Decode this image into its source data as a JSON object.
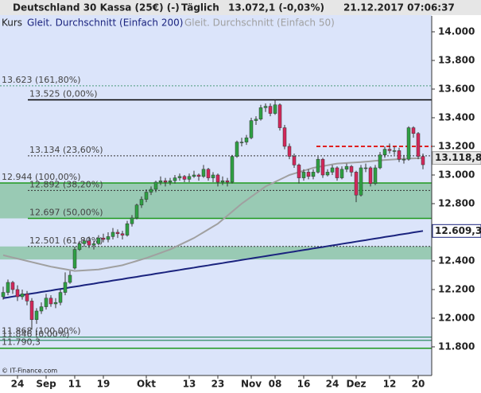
{
  "header": {
    "title": "Deutschland 30 Kassa (25€) (-)",
    "interval": "Täglich",
    "quote": "13.072,1 (-0,03%)",
    "timestamp": "21.12.2017 07:06:37"
  },
  "footer": "© IT-Finance.com",
  "chart_data": {
    "type": "candlestick",
    "legend_label": "Kurs",
    "categories": [
      null,
      null,
      null,
      "24",
      null,
      null,
      null,
      null,
      null,
      "Sep",
      null,
      null,
      null,
      null,
      null,
      "11",
      null,
      null,
      null,
      null,
      null,
      "19",
      null,
      null,
      null,
      null,
      null,
      null,
      null,
      null,
      "Okt",
      null,
      null,
      null,
      null,
      null,
      null,
      null,
      null,
      "13",
      null,
      null,
      null,
      null,
      null,
      "23",
      null,
      null,
      null,
      null,
      null,
      null,
      "Nov",
      null,
      null,
      null,
      null,
      "08",
      null,
      null,
      null,
      null,
      null,
      "16",
      null,
      null,
      null,
      null,
      null,
      "24",
      null,
      null,
      null,
      null,
      "Dez",
      null,
      null,
      null,
      null,
      null,
      null,
      "12",
      null,
      null,
      null,
      null,
      null,
      "20",
      null
    ],
    "ohlc": [
      [
        12150,
        12220,
        12130,
        12180
      ],
      [
        12180,
        12270,
        12160,
        12250
      ],
      [
        12250,
        12260,
        12170,
        12200
      ],
      [
        12200,
        12230,
        12120,
        12150
      ],
      [
        12150,
        12200,
        12130,
        12170
      ],
      [
        12170,
        12190,
        12090,
        12120
      ],
      [
        12120,
        12140,
        11920,
        11990
      ],
      [
        11990,
        12070,
        11960,
        12050
      ],
      [
        12050,
        12110,
        12030,
        12080
      ],
      [
        12080,
        12170,
        12060,
        12140
      ],
      [
        12140,
        12160,
        12080,
        12100
      ],
      [
        12100,
        12140,
        12070,
        12110
      ],
      [
        12110,
        12200,
        12090,
        12180
      ],
      [
        12180,
        12320,
        12160,
        12250
      ],
      [
        12250,
        12330,
        12240,
        12300
      ],
      [
        12350,
        12500,
        12340,
        12480
      ],
      [
        12480,
        12540,
        12470,
        12520
      ],
      [
        12520,
        12560,
        12500,
        12540
      ],
      [
        12540,
        12570,
        12490,
        12510
      ],
      [
        12510,
        12540,
        12480,
        12520
      ],
      [
        12520,
        12580,
        12510,
        12560
      ],
      [
        12560,
        12590,
        12530,
        12550
      ],
      [
        12550,
        12600,
        12530,
        12570
      ],
      [
        12570,
        12630,
        12550,
        12600
      ],
      [
        12600,
        12620,
        12560,
        12590
      ],
      [
        12590,
        12610,
        12550,
        12580
      ],
      [
        12580,
        12680,
        12570,
        12660
      ],
      [
        12660,
        12720,
        12640,
        12700
      ],
      [
        12700,
        12800,
        12690,
        12790
      ],
      [
        12790,
        12850,
        12770,
        12830
      ],
      [
        12830,
        12900,
        12810,
        12880
      ],
      [
        12880,
        12920,
        12860,
        12900
      ],
      [
        12900,
        12960,
        12880,
        12950
      ],
      [
        12950,
        12990,
        12930,
        12960
      ],
      [
        12960,
        12980,
        12920,
        12950
      ],
      [
        12950,
        12980,
        12930,
        12960
      ],
      [
        12960,
        13000,
        12940,
        12980
      ],
      [
        12980,
        13010,
        12960,
        12990
      ],
      [
        12990,
        13000,
        12950,
        12970
      ],
      [
        12970,
        13010,
        12950,
        12990
      ],
      [
        12990,
        13030,
        12980,
        13000
      ],
      [
        13000,
        13010,
        12960,
        12990
      ],
      [
        12990,
        13070,
        12980,
        13040
      ],
      [
        13040,
        13050,
        12960,
        12980
      ],
      [
        12980,
        13020,
        12950,
        13000
      ],
      [
        13000,
        13010,
        12920,
        12950
      ],
      [
        12950,
        12990,
        12930,
        12960
      ],
      [
        12960,
        12980,
        12920,
        12950
      ],
      [
        12950,
        13140,
        12940,
        13130
      ],
      [
        13130,
        13240,
        13120,
        13230
      ],
      [
        13230,
        13260,
        13200,
        13230
      ],
      [
        13230,
        13280,
        13210,
        13260
      ],
      [
        13260,
        13400,
        13250,
        13380
      ],
      [
        13380,
        13410,
        13350,
        13390
      ],
      [
        13390,
        13490,
        13380,
        13470
      ],
      [
        13470,
        13500,
        13440,
        13480
      ],
      [
        13480,
        13500,
        13410,
        13430
      ],
      [
        13430,
        13525,
        13420,
        13490
      ],
      [
        13490,
        13500,
        13310,
        13330
      ],
      [
        13330,
        13350,
        13180,
        13200
      ],
      [
        13200,
        13220,
        13110,
        13130
      ],
      [
        13130,
        13150,
        13050,
        13070
      ],
      [
        13070,
        13080,
        12940,
        12980
      ],
      [
        12980,
        13040,
        12960,
        13020
      ],
      [
        13020,
        13040,
        12970,
        12990
      ],
      [
        12990,
        13040,
        12970,
        13020
      ],
      [
        13020,
        13130,
        13010,
        13110
      ],
      [
        13110,
        13120,
        12980,
        13000
      ],
      [
        13000,
        13040,
        12990,
        13020
      ],
      [
        13020,
        13070,
        13000,
        13050
      ],
      [
        13050,
        13060,
        12960,
        12980
      ],
      [
        12980,
        13060,
        12970,
        13040
      ],
      [
        13040,
        13080,
        13020,
        13060
      ],
      [
        13060,
        13070,
        12990,
        13020
      ],
      [
        13020,
        13030,
        12810,
        12860
      ],
      [
        12860,
        13070,
        12850,
        13050
      ],
      [
        13050,
        13080,
        13020,
        13050
      ],
      [
        13050,
        13060,
        12920,
        12940
      ],
      [
        12940,
        13070,
        12930,
        13050
      ],
      [
        13050,
        13160,
        13040,
        13140
      ],
      [
        13140,
        13200,
        13120,
        13180
      ],
      [
        13180,
        13220,
        13150,
        13170
      ],
      [
        13170,
        13200,
        13140,
        13170
      ],
      [
        13170,
        13190,
        13090,
        13110
      ],
      [
        13110,
        13140,
        13080,
        13110
      ],
      [
        13110,
        13340,
        13100,
        13330
      ],
      [
        13330,
        13340,
        13260,
        13290
      ],
      [
        13290,
        13300,
        13110,
        13130
      ],
      [
        13130,
        13150,
        13040,
        13072
      ]
    ],
    "up_color": "#2ea043",
    "down_color": "#d3275b",
    "series": [
      {
        "name": "Gleit. Durchschnitt (Einfach 200)",
        "color": "#1a237e",
        "end_label": "12.609,3",
        "values": [
          12140,
          12145,
          12151,
          12156,
          12161,
          12167,
          12172,
          12177,
          12183,
          12188,
          12193,
          12199,
          12204,
          12209,
          12215,
          12220,
          12225,
          12231,
          12236,
          12241,
          12247,
          12252,
          12257,
          12263,
          12268,
          12273,
          12279,
          12284,
          12289,
          12295,
          12300,
          12305,
          12311,
          12316,
          12321,
          12327,
          12332,
          12337,
          12343,
          12348,
          12353,
          12359,
          12364,
          12369,
          12375,
          12380,
          12385,
          12391,
          12396,
          12401,
          12407,
          12412,
          12417,
          12423,
          12428,
          12433,
          12439,
          12444,
          12449,
          12455,
          12460,
          12465,
          12471,
          12476,
          12481,
          12487,
          12492,
          12497,
          12503,
          12508,
          12513,
          12519,
          12524,
          12529,
          12535,
          12540,
          12545,
          12551,
          12556,
          12561,
          12567,
          12572,
          12577,
          12583,
          12588,
          12593,
          12599,
          12604,
          12609.3
        ]
      },
      {
        "name": "Gleit. Durchschnitt (Einfach 50)",
        "color": "#a0a0a0",
        "end_label": "13.118,8",
        "values": [
          12440,
          12432,
          12424,
          12416,
          12408,
          12400,
          12392,
          12384,
          12376,
          12368,
          12360,
          12354,
          12348,
          12342,
          12336,
          12330,
          12332,
          12334,
          12336,
          12338,
          12340,
          12346,
          12352,
          12358,
          12364,
          12370,
          12380,
          12390,
          12400,
          12410,
          12420,
          12432,
          12444,
          12456,
          12468,
          12480,
          12496,
          12512,
          12528,
          12544,
          12560,
          12580,
          12600,
          12620,
          12640,
          12660,
          12688,
          12716,
          12744,
          12772,
          12800,
          12824,
          12848,
          12872,
          12896,
          12920,
          12936,
          12952,
          12968,
          12984,
          13000,
          13010,
          13020,
          13030,
          13040,
          13050,
          13056,
          13062,
          13068,
          13074,
          13080,
          13082,
          13084,
          13086,
          13088,
          13090,
          13093,
          13096,
          13099,
          13102,
          13105,
          13107,
          13109,
          13111,
          13113,
          13115,
          13116,
          13117,
          13118.8
        ]
      }
    ],
    "levels": [
      {
        "value": 13623,
        "label": "13.623 (161,80%)",
        "color": "#4a9a7a",
        "style": "dotted"
      },
      {
        "value": 13525,
        "label": "13.525 (0,00%)",
        "color": "#000000",
        "style": "solid"
      },
      {
        "value": 13134,
        "label": "13.134 (23,60%)",
        "color": "#333333",
        "style": "dotted"
      },
      {
        "value": 12944,
        "label": "12.944 (100,00%)",
        "color": "#1f9a1f",
        "style": "solid"
      },
      {
        "value": 12892,
        "label": "12.892 (38,20%)",
        "color": "#333333",
        "style": "dotted"
      },
      {
        "value": 12697,
        "label": "12.697 (50,00%)",
        "color": "#1f9a1f",
        "style": "solid"
      },
      {
        "value": 12501,
        "label": "12.501 (61,80%)",
        "color": "#333333",
        "style": "dotted"
      },
      {
        "value": 11868,
        "label": "11.868 (100,00%)",
        "color": "#4a9a7a",
        "style": "solid"
      },
      {
        "value": 11846,
        "label": "11.846 (0,00%)",
        "color": "#4a9a7a",
        "style": "solid"
      },
      {
        "value": 11790.3,
        "label": "11.790,3",
        "color": "#1f9a1f",
        "style": "solid"
      }
    ],
    "zones": [
      [
        12944,
        12697
      ],
      [
        12501,
        12410
      ]
    ],
    "zone_color": "#7dbf96",
    "resistance": 13200,
    "resistance_color": "#e02020",
    "ylim": [
      11611,
      14111
    ],
    "yticks": [
      {
        "value": 14000,
        "label": "14.000"
      },
      {
        "value": 13800,
        "label": "13.800"
      },
      {
        "value": 13600,
        "label": "13.600"
      },
      {
        "value": 13400,
        "label": "13.400"
      },
      {
        "value": 13200,
        "label": "13.200"
      },
      {
        "value": 13000,
        "label": "13.000"
      },
      {
        "value": 12800,
        "label": "12.800"
      },
      {
        "value": 12600,
        "label": "12.600"
      },
      {
        "value": 12400,
        "label": "12.400"
      },
      {
        "value": 12200,
        "label": "12.200"
      },
      {
        "value": 12000,
        "label": "12.000"
      },
      {
        "value": 11800,
        "label": "11.800"
      }
    ]
  }
}
